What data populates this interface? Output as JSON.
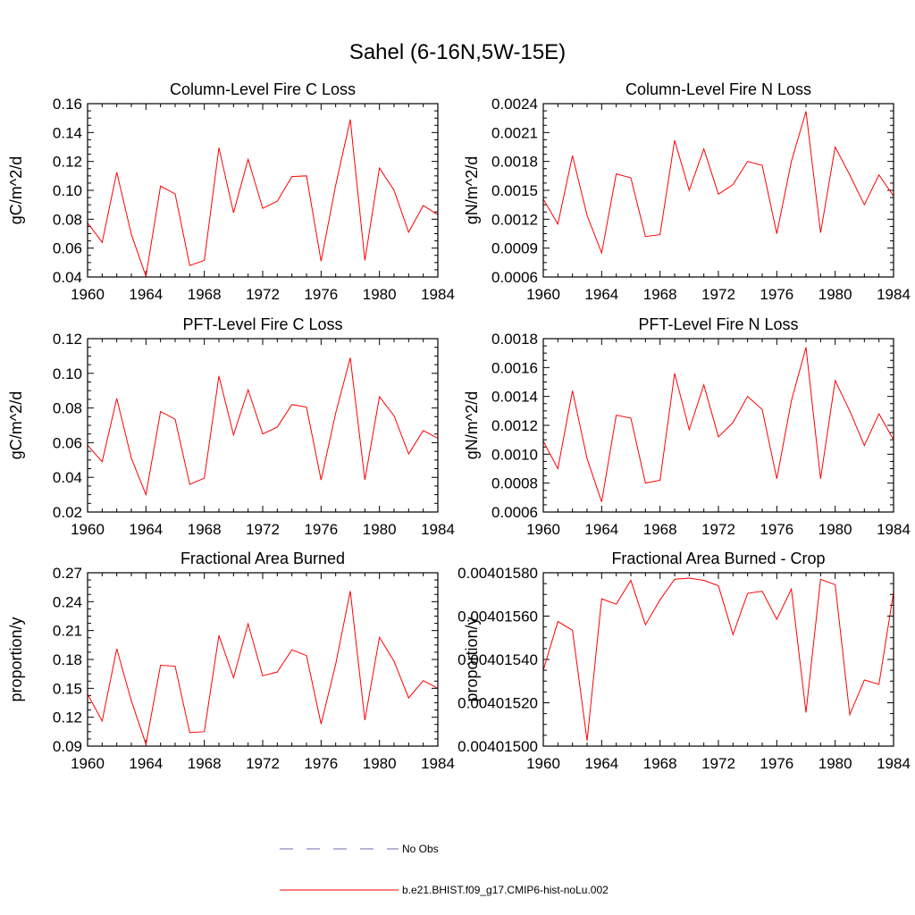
{
  "figure": {
    "title": "Sahel (6-16N,5W-15E)",
    "line_color": "#ff0000",
    "obs_color": "#6b6bb5"
  },
  "legend": {
    "placement": "bottom-center",
    "entries": [
      {
        "label": "No Obs",
        "style": "dashed",
        "color": "#6b6bb5"
      },
      {
        "label": "b.e21.BHIST.f09_g17.CMIP6-hist-noLu.002",
        "style": "solid",
        "color": "#ff0000"
      }
    ]
  },
  "chart_data": [
    {
      "type": "line",
      "title": "Column-Level Fire C Loss",
      "ylabel": "gC/m^2/d",
      "xlabel": "",
      "xlim": [
        1960,
        1984
      ],
      "ylim": [
        0.04,
        0.16
      ],
      "xticks": [
        "1960",
        "1964",
        "1968",
        "1972",
        "1976",
        "1980",
        "1984"
      ],
      "yticks": [
        "0.04",
        "0.06",
        "0.08",
        "0.10",
        "0.12",
        "0.14",
        "0.16"
      ],
      "x": [
        1960,
        1961,
        1962,
        1963,
        1964,
        1965,
        1966,
        1967,
        1968,
        1969,
        1970,
        1971,
        1972,
        1973,
        1974,
        1975,
        1976,
        1977,
        1978,
        1979,
        1980,
        1981,
        1982,
        1983,
        1984
      ],
      "series": [
        {
          "values": [
            0.0775,
            0.064,
            0.1125,
            0.0695,
            0.0405,
            0.103,
            0.0975,
            0.048,
            0.0515,
            0.1295,
            0.0845,
            0.1215,
            0.0875,
            0.0925,
            0.1095,
            0.11,
            0.051,
            0.1035,
            0.149,
            0.0515,
            0.1155,
            0.1,
            0.071,
            0.0895,
            0.083
          ]
        }
      ]
    },
    {
      "type": "line",
      "title": "Column-Level Fire N Loss",
      "ylabel": "gN/m^2/d",
      "xlabel": "",
      "xlim": [
        1960,
        1984
      ],
      "ylim": [
        0.0006,
        0.0024
      ],
      "xticks": [
        "1960",
        "1964",
        "1968",
        "1972",
        "1976",
        "1980",
        "1984"
      ],
      "yticks": [
        "0.0006",
        "0.0009",
        "0.0012",
        "0.0015",
        "0.0018",
        "0.0021",
        "0.0024"
      ],
      "x": [
        1960,
        1961,
        1962,
        1963,
        1964,
        1965,
        1966,
        1967,
        1968,
        1969,
        1970,
        1971,
        1972,
        1973,
        1974,
        1975,
        1976,
        1977,
        1978,
        1979,
        1980,
        1981,
        1982,
        1983,
        1984
      ],
      "series": [
        {
          "values": [
            0.00141,
            0.00115,
            0.00186,
            0.00124,
            0.00085,
            0.00167,
            0.00163,
            0.00102,
            0.00104,
            0.00202,
            0.0015,
            0.00193,
            0.00146,
            0.00156,
            0.0018,
            0.00176,
            0.00105,
            0.0018,
            0.00232,
            0.00106,
            0.00195,
            0.00166,
            0.00135,
            0.00166,
            0.00144
          ]
        }
      ]
    },
    {
      "type": "line",
      "title": "PFT-Level Fire C Loss",
      "ylabel": "gC/m^2/d",
      "xlabel": "",
      "xlim": [
        1960,
        1984
      ],
      "ylim": [
        0.02,
        0.12
      ],
      "xticks": [
        "1960",
        "1964",
        "1968",
        "1972",
        "1976",
        "1980",
        "1984"
      ],
      "yticks": [
        "0.02",
        "0.04",
        "0.06",
        "0.08",
        "0.10",
        "0.12"
      ],
      "x": [
        1960,
        1961,
        1962,
        1963,
        1964,
        1965,
        1966,
        1967,
        1968,
        1969,
        1970,
        1971,
        1972,
        1973,
        1974,
        1975,
        1976,
        1977,
        1978,
        1979,
        1980,
        1981,
        1982,
        1983,
        1984
      ],
      "series": [
        {
          "values": [
            0.0585,
            0.049,
            0.0855,
            0.051,
            0.03,
            0.078,
            0.0735,
            0.036,
            0.0395,
            0.0985,
            0.0645,
            0.0905,
            0.065,
            0.069,
            0.082,
            0.0805,
            0.0385,
            0.077,
            0.109,
            0.0385,
            0.0865,
            0.0755,
            0.0535,
            0.067,
            0.0625
          ]
        }
      ]
    },
    {
      "type": "line",
      "title": "PFT-Level Fire N Loss",
      "ylabel": "gN/m^2/d",
      "xlabel": "",
      "xlim": [
        1960,
        1984
      ],
      "ylim": [
        0.0006,
        0.0018
      ],
      "xticks": [
        "1960",
        "1964",
        "1968",
        "1972",
        "1976",
        "1980",
        "1984"
      ],
      "yticks": [
        "0.0006",
        "0.0008",
        "0.0010",
        "0.0012",
        "0.0014",
        "0.0016",
        "0.0018"
      ],
      "x": [
        1960,
        1961,
        1962,
        1963,
        1964,
        1965,
        1966,
        1967,
        1968,
        1969,
        1970,
        1971,
        1972,
        1973,
        1974,
        1975,
        1976,
        1977,
        1978,
        1979,
        1980,
        1981,
        1982,
        1983,
        1984
      ],
      "series": [
        {
          "values": [
            0.00109,
            0.0009,
            0.00144,
            0.00097,
            0.00067,
            0.00127,
            0.00125,
            0.0008,
            0.00082,
            0.00156,
            0.00117,
            0.00148,
            0.00112,
            0.00122,
            0.0014,
            0.00131,
            0.00083,
            0.00137,
            0.00174,
            0.00083,
            0.00151,
            0.0013,
            0.00106,
            0.00128,
            0.0011
          ]
        }
      ]
    },
    {
      "type": "line",
      "title": "Fractional Area Burned",
      "ylabel": "proportion/y",
      "xlabel": "",
      "xlim": [
        1960,
        1984
      ],
      "ylim": [
        0.09,
        0.27
      ],
      "xticks": [
        "1960",
        "1964",
        "1968",
        "1972",
        "1976",
        "1980",
        "1984"
      ],
      "yticks": [
        "0.09",
        "0.12",
        "0.15",
        "0.18",
        "0.21",
        "0.24",
        "0.27"
      ],
      "x": [
        1960,
        1961,
        1962,
        1963,
        1964,
        1965,
        1966,
        1967,
        1968,
        1969,
        1970,
        1971,
        1972,
        1973,
        1974,
        1975,
        1976,
        1977,
        1978,
        1979,
        1980,
        1981,
        1982,
        1983,
        1984
      ],
      "series": [
        {
          "values": [
            0.144,
            0.116,
            0.191,
            0.137,
            0.092,
            0.174,
            0.173,
            0.104,
            0.105,
            0.205,
            0.161,
            0.217,
            0.163,
            0.167,
            0.19,
            0.184,
            0.113,
            0.175,
            0.251,
            0.117,
            0.203,
            0.178,
            0.14,
            0.158,
            0.15
          ]
        }
      ]
    },
    {
      "type": "line",
      "title": "Fractional Area Burned - Crop",
      "ylabel": "proportion/y",
      "xlabel": "",
      "xlim": [
        1960,
        1984
      ],
      "ylim": [
        0.004015,
        0.0040158
      ],
      "xticks": [
        "1960",
        "1964",
        "1968",
        "1972",
        "1976",
        "1980",
        "1984"
      ],
      "yticks": [
        "0.00401500",
        "0.00401520",
        "0.00401540",
        "0.00401560",
        "0.00401580"
      ],
      "x": [
        1960,
        1961,
        1962,
        1963,
        1964,
        1965,
        1966,
        1967,
        1968,
        1969,
        1970,
        1971,
        1972,
        1973,
        1974,
        1975,
        1976,
        1977,
        1978,
        1979,
        1980,
        1981,
        1982,
        1983,
        1984
      ],
      "series": [
        {
          "values": [
            0.00401535,
            0.004015575,
            0.004015535,
            0.004015025,
            0.00401568,
            0.004015655,
            0.004015765,
            0.00401556,
            0.004015675,
            0.00401577,
            0.004015775,
            0.004015765,
            0.00401574,
            0.004015515,
            0.004015705,
            0.004015715,
            0.004015585,
            0.004015725,
            0.004015155,
            0.00401577,
            0.004015745,
            0.004015145,
            0.004015305,
            0.004015285,
            0.00401571
          ]
        }
      ]
    }
  ]
}
